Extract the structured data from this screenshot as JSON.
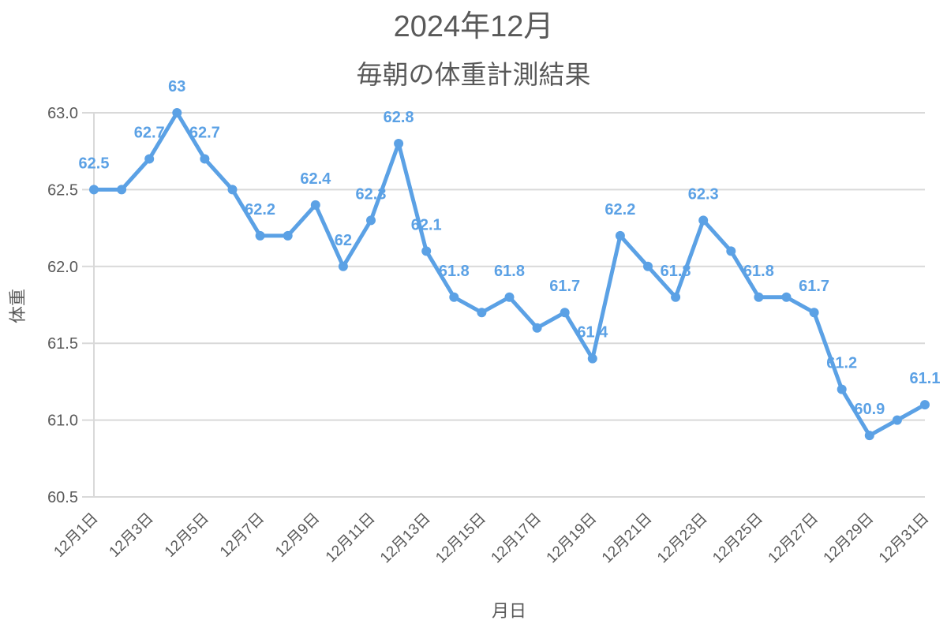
{
  "chart_data": {
    "type": "line",
    "title": "2024年12月",
    "subtitle": "毎朝の体重計測結果",
    "xlabel": "月日",
    "ylabel": "体重",
    "ylim": [
      60.5,
      63.0
    ],
    "yticks": [
      "63.0",
      "62.5",
      "62.0",
      "61.5",
      "61.0",
      "60.5"
    ],
    "grid": true,
    "legend": "none",
    "color": "#5BA1E5",
    "x": [
      "12月1日",
      "12月2日",
      "12月3日",
      "12月4日",
      "12月5日",
      "12月6日",
      "12月7日",
      "12月8日",
      "12月9日",
      "12月10日",
      "12月11日",
      "12月12日",
      "12月13日",
      "12月14日",
      "12月15日",
      "12月16日",
      "12月17日",
      "12月18日",
      "12月19日",
      "12月20日",
      "12月21日",
      "12月22日",
      "12月23日",
      "12月24日",
      "12月25日",
      "12月26日",
      "12月27日",
      "12月28日",
      "12月29日",
      "12月30日",
      "12月31日"
    ],
    "xtick_labels": [
      "12月1日",
      "12月3日",
      "12月5日",
      "12月7日",
      "12月9日",
      "12月11日",
      "12月13日",
      "12月15日",
      "12月17日",
      "12月19日",
      "12月21日",
      "12月23日",
      "12月25日",
      "12月27日",
      "12月29日",
      "12月31日"
    ],
    "series": [
      {
        "name": "体重",
        "values": [
          62.5,
          62.5,
          62.7,
          63.0,
          62.7,
          62.5,
          62.2,
          62.2,
          62.4,
          62.0,
          62.3,
          62.8,
          62.1,
          61.8,
          61.7,
          61.8,
          61.6,
          61.7,
          61.4,
          62.2,
          62.0,
          61.8,
          62.3,
          62.1,
          61.8,
          61.8,
          61.7,
          61.2,
          60.9,
          61.0,
          61.1
        ]
      }
    ],
    "data_labels": [
      {
        "day": 1,
        "text": "62.5"
      },
      {
        "day": 3,
        "text": "62.7"
      },
      {
        "day": 4,
        "text": "63"
      },
      {
        "day": 5,
        "text": "62.7"
      },
      {
        "day": 7,
        "text": "62.2"
      },
      {
        "day": 9,
        "text": "62.4"
      },
      {
        "day": 10,
        "text": "62"
      },
      {
        "day": 11,
        "text": "62.3"
      },
      {
        "day": 12,
        "text": "62.8"
      },
      {
        "day": 13,
        "text": "62.1"
      },
      {
        "day": 14,
        "text": "61.8"
      },
      {
        "day": 16,
        "text": "61.8"
      },
      {
        "day": 18,
        "text": "61.7"
      },
      {
        "day": 19,
        "text": "61.4"
      },
      {
        "day": 20,
        "text": "62.2"
      },
      {
        "day": 22,
        "text": "61.8"
      },
      {
        "day": 23,
        "text": "62.3"
      },
      {
        "day": 25,
        "text": "61.8"
      },
      {
        "day": 27,
        "text": "61.7"
      },
      {
        "day": 28,
        "text": "61.2"
      },
      {
        "day": 29,
        "text": "60.9"
      },
      {
        "day": 31,
        "text": "61.1"
      }
    ]
  }
}
